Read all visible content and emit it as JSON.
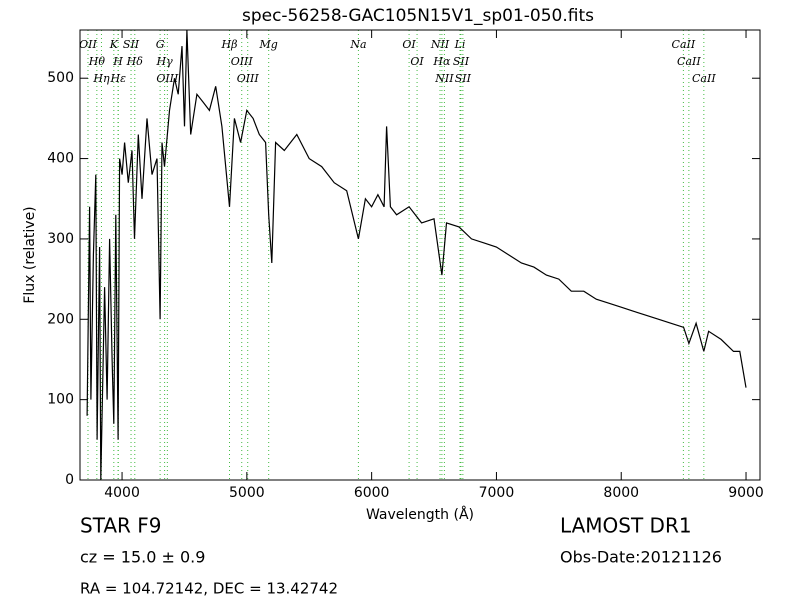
{
  "chart_data": {
    "type": "line",
    "title": "spec-56258-GAC105N15V1_sp01-050.fits",
    "xlabel": "Wavelength (Å)",
    "ylabel": "Flux (relative)",
    "xlim": [
      3663,
      9112
    ],
    "ylim": [
      0,
      560
    ],
    "xticks": [
      4000,
      5000,
      6000,
      7000,
      8000,
      9000
    ],
    "yticks": [
      0,
      100,
      200,
      300,
      400,
      500
    ],
    "series": [
      {
        "color": "#000000",
        "x": [
          3720,
          3740,
          3750,
          3770,
          3790,
          3800,
          3820,
          3830,
          3860,
          3880,
          3900,
          3920,
          3934,
          3950,
          3968,
          3980,
          4000,
          4020,
          4050,
          4080,
          4100,
          4130,
          4160,
          4200,
          4240,
          4280,
          4305,
          4320,
          4340,
          4380,
          4420,
          4450,
          4480,
          4500,
          4520,
          4550,
          4600,
          4650,
          4700,
          4750,
          4800,
          4861,
          4900,
          4950,
          5000,
          5050,
          5100,
          5150,
          5175,
          5200,
          5230,
          5300,
          5400,
          5500,
          5600,
          5700,
          5800,
          5894,
          5950,
          6000,
          6050,
          6100,
          6120,
          6150,
          6200,
          6300,
          6400,
          6500,
          6563,
          6600,
          6700,
          6800,
          6900,
          7000,
          7100,
          7200,
          7300,
          7400,
          7500,
          7600,
          7700,
          7800,
          7900,
          8000,
          8100,
          8200,
          8300,
          8400,
          8500,
          8542,
          8600,
          8662,
          8700,
          8800,
          8900,
          8950,
          9000
        ],
        "values": [
          80,
          340,
          100,
          280,
          380,
          50,
          290,
          0,
          240,
          100,
          300,
          150,
          70,
          330,
          50,
          400,
          380,
          420,
          370,
          410,
          300,
          430,
          350,
          450,
          380,
          400,
          200,
          420,
          390,
          460,
          500,
          480,
          540,
          440,
          560,
          430,
          480,
          470,
          460,
          490,
          440,
          340,
          450,
          420,
          460,
          450,
          430,
          420,
          330,
          270,
          420,
          410,
          430,
          400,
          390,
          370,
          360,
          300,
          350,
          340,
          355,
          340,
          440,
          340,
          330,
          340,
          320,
          325,
          255,
          320,
          315,
          300,
          295,
          290,
          280,
          270,
          265,
          255,
          250,
          235,
          235,
          225,
          220,
          215,
          210,
          205,
          200,
          195,
          190,
          170,
          195,
          160,
          185,
          175,
          160,
          160,
          115
        ]
      }
    ],
    "lines": {
      "color": "#44bb44",
      "names": [
        "OII",
        "Hθ",
        "Hη",
        "K",
        "H",
        "Hε",
        "SII",
        "Hδ",
        "G",
        "Hγ",
        "OIII",
        "Hβ",
        "OIII",
        "OIII",
        "Mg",
        "Na",
        "OI",
        "OI",
        "NII",
        "Hα",
        "NII",
        "Li",
        "SII",
        "SII",
        "CaII",
        "CaII",
        "CaII"
      ],
      "wavelengths": [
        3727,
        3798,
        3835,
        3934,
        3968,
        3970,
        4072,
        4102,
        4305,
        4341,
        4363,
        4861,
        4959,
        5007,
        5175,
        5894,
        6300,
        6364,
        6548,
        6563,
        6583,
        6708,
        6716,
        6731,
        8498,
        8542,
        8662
      ]
    },
    "info": {
      "object": "STAR   F9",
      "cz": "cz = 15.0  ± 0.9",
      "coords": "RA = 104.72142, DEC = 13.42742",
      "survey": "LAMOST DR1",
      "date": "Obs-Date:20121126"
    }
  }
}
